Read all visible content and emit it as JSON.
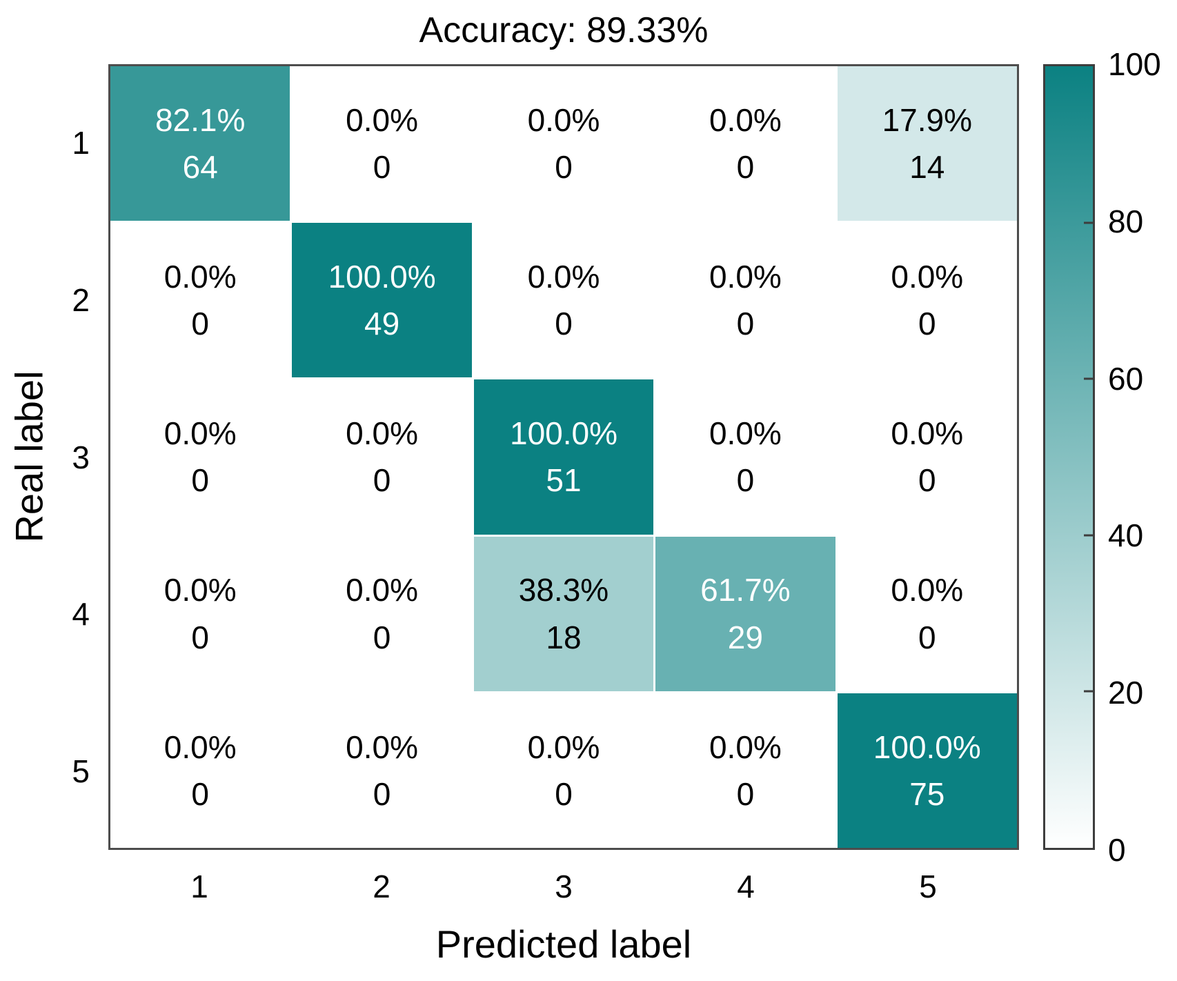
{
  "title": "Accuracy: 89.33%",
  "colors": {
    "cmap_low": "#ffffff",
    "cmap_high": "#0b8182",
    "grid_line": "#ffffff",
    "frame": "#4d4d4d",
    "text_on_dark": "#ffffff",
    "text_on_light": "#000000"
  },
  "chart_data": {
    "type": "heatmap",
    "title": "Accuracy: 89.33%",
    "xlabel": "Predicted label",
    "ylabel": "Real label",
    "x_categories": [
      "1",
      "2",
      "3",
      "4",
      "5"
    ],
    "y_categories": [
      "1",
      "2",
      "3",
      "4",
      "5"
    ],
    "cell_percentages": [
      [
        82.1,
        0.0,
        0.0,
        0.0,
        17.9
      ],
      [
        0.0,
        100.0,
        0.0,
        0.0,
        0.0
      ],
      [
        0.0,
        0.0,
        100.0,
        0.0,
        0.0
      ],
      [
        0.0,
        0.0,
        38.3,
        61.7,
        0.0
      ],
      [
        0.0,
        0.0,
        0.0,
        0.0,
        100.0
      ]
    ],
    "cell_counts": [
      [
        64,
        0,
        0,
        0,
        14
      ],
      [
        0,
        49,
        0,
        0,
        0
      ],
      [
        0,
        0,
        51,
        0,
        0
      ],
      [
        0,
        0,
        18,
        29,
        0
      ],
      [
        0,
        0,
        0,
        0,
        75
      ]
    ],
    "colorbar": {
      "min": 0,
      "max": 100,
      "tick_values": [
        100,
        80,
        60,
        40,
        20,
        0
      ],
      "minor_tick_marks": [
        80,
        60,
        40,
        20
      ],
      "position": "right"
    },
    "grid": false,
    "legend": null
  }
}
